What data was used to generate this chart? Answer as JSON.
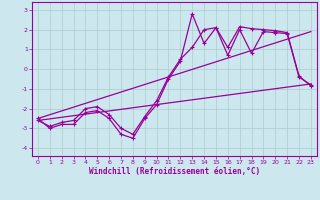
{
  "xlabel": "Windchill (Refroidissement éolien,°C)",
  "background_color": "#cce8ee",
  "grid_color": "#aacccc",
  "line_color": "#990099",
  "x_ticks": [
    0,
    1,
    2,
    3,
    4,
    5,
    6,
    7,
    8,
    9,
    10,
    11,
    12,
    13,
    14,
    15,
    16,
    17,
    18,
    19,
    20,
    21,
    22,
    23
  ],
  "y_ticks": [
    -4,
    -3,
    -2,
    -1,
    0,
    1,
    2,
    3
  ],
  "ylim": [
    -4.4,
    3.4
  ],
  "xlim": [
    -0.5,
    23.5
  ],
  "series1": {
    "x": [
      0,
      1,
      2,
      3,
      4,
      5,
      6,
      7,
      8,
      9,
      10,
      11,
      12,
      13,
      14,
      15,
      16,
      17,
      18,
      19,
      20,
      21,
      22,
      23
    ],
    "y": [
      -2.5,
      -3.0,
      -2.8,
      -2.8,
      -2.2,
      -2.1,
      -2.5,
      -3.3,
      -3.5,
      -2.5,
      -1.8,
      -0.5,
      0.4,
      2.8,
      1.3,
      2.1,
      0.7,
      2.0,
      0.8,
      1.9,
      1.85,
      1.8,
      -0.4,
      -0.8
    ]
  },
  "series2": {
    "x": [
      0,
      1,
      2,
      3,
      4,
      5,
      6,
      7,
      8,
      9,
      10,
      11,
      12,
      13,
      14,
      15,
      16,
      17,
      18,
      19,
      20,
      21,
      22,
      23
    ],
    "y": [
      -2.6,
      -2.9,
      -2.7,
      -2.6,
      -2.0,
      -1.9,
      -2.3,
      -3.0,
      -3.3,
      -2.4,
      -1.6,
      -0.4,
      0.5,
      1.1,
      2.0,
      2.1,
      1.1,
      2.15,
      2.05,
      2.0,
      1.95,
      1.85,
      -0.35,
      -0.85
    ]
  },
  "series3_linear": {
    "x": [
      0,
      23
    ],
    "y": [
      -2.6,
      -0.75
    ]
  },
  "series4_linear": {
    "x": [
      0,
      23
    ],
    "y": [
      -2.5,
      1.9
    ]
  }
}
